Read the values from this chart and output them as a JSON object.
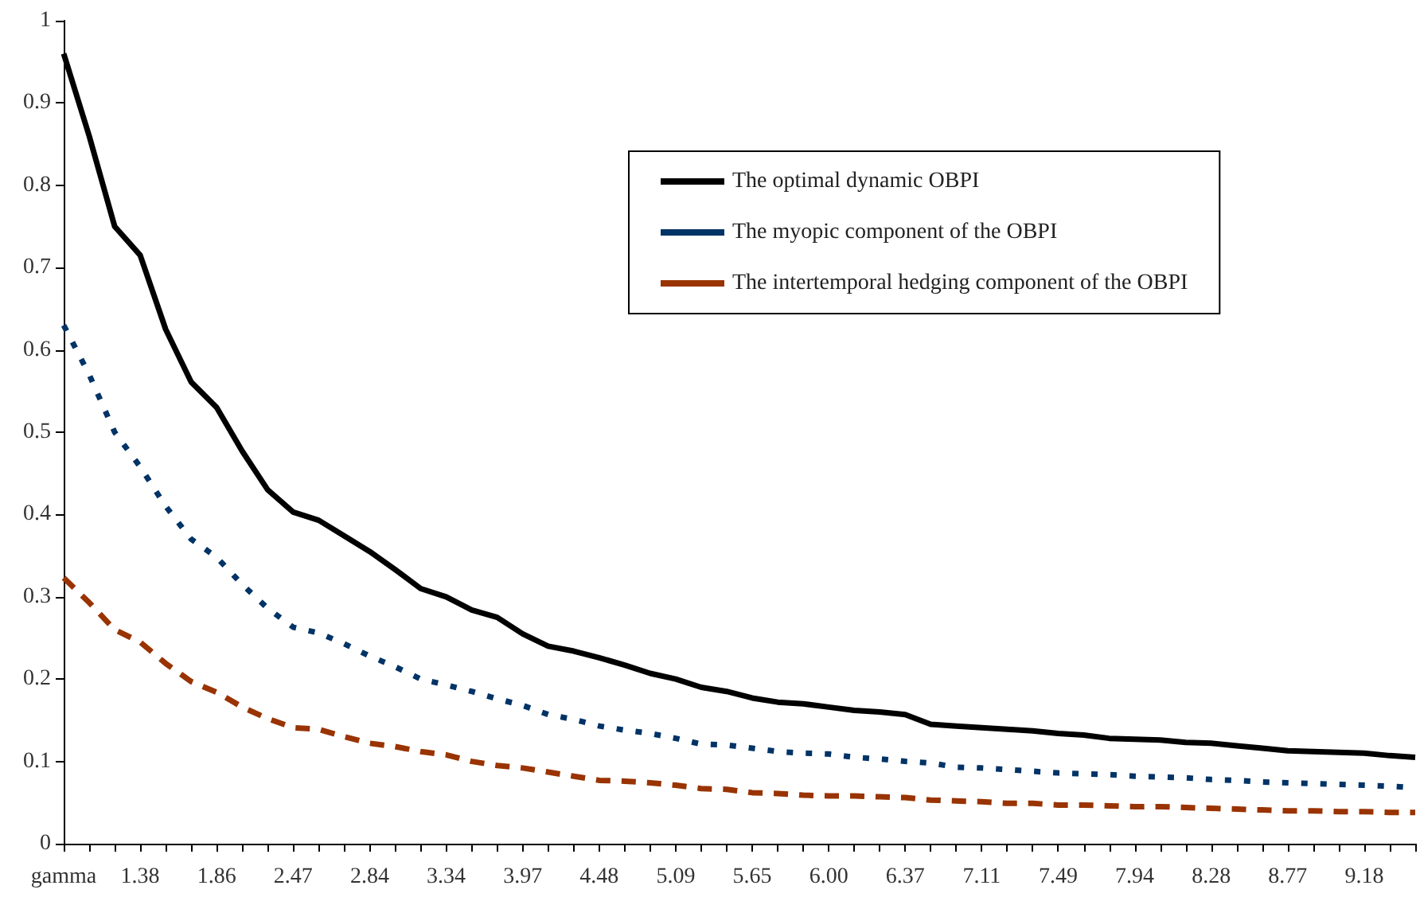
{
  "chart_data": {
    "type": "line",
    "categories": [
      "gamma",
      null,
      null,
      "1.38",
      null,
      null,
      "1.86",
      null,
      null,
      "2.47",
      null,
      null,
      "2.84",
      null,
      null,
      "3.34",
      null,
      null,
      "3.97",
      null,
      null,
      "4.48",
      null,
      null,
      "5.09",
      null,
      null,
      "5.65",
      null,
      null,
      "6.00",
      null,
      null,
      "6.37",
      null,
      null,
      "7.11",
      null,
      null,
      "7.49",
      null,
      null,
      "7.94",
      null,
      null,
      "8.28",
      null,
      null,
      "8.77",
      null,
      null,
      "9.18",
      null,
      null
    ],
    "series": [
      {
        "name": "The optimal dynamic OBPI",
        "color": "#000000",
        "line_style": "solid",
        "values": [
          0.96,
          0.86,
          0.75,
          0.715,
          0.625,
          0.561,
          0.53,
          0.477,
          0.43,
          0.403,
          0.393,
          0.374,
          0.355,
          0.333,
          0.31,
          0.3,
          0.284,
          0.275,
          0.255,
          0.24,
          0.234,
          0.226,
          0.217,
          0.207,
          0.2,
          0.19,
          0.185,
          0.177,
          0.172,
          0.17,
          0.166,
          0.162,
          0.16,
          0.157,
          0.145,
          0.143,
          0.141,
          0.139,
          0.137,
          0.134,
          0.132,
          0.128,
          0.127,
          0.126,
          0.123,
          0.122,
          0.119,
          0.116,
          0.113,
          0.112,
          0.111,
          0.11,
          0.107,
          0.105
        ]
      },
      {
        "name": "The myopic component of the OBPI",
        "color": "#003366",
        "line_style": "dotted",
        "values": [
          0.63,
          0.57,
          0.5,
          0.458,
          0.41,
          0.37,
          0.348,
          0.315,
          0.286,
          0.263,
          0.256,
          0.243,
          0.228,
          0.215,
          0.2,
          0.193,
          0.185,
          0.176,
          0.168,
          0.157,
          0.151,
          0.143,
          0.138,
          0.134,
          0.128,
          0.121,
          0.12,
          0.116,
          0.112,
          0.11,
          0.109,
          0.105,
          0.103,
          0.1,
          0.098,
          0.093,
          0.092,
          0.09,
          0.088,
          0.086,
          0.085,
          0.084,
          0.082,
          0.081,
          0.08,
          0.078,
          0.077,
          0.075,
          0.074,
          0.073,
          0.072,
          0.071,
          0.07,
          0.068
        ]
      },
      {
        "name": "The intertemporal hedging component of the OBPI",
        "color": "#993300",
        "line_style": "dashed",
        "values": [
          0.323,
          0.293,
          0.26,
          0.245,
          0.219,
          0.197,
          0.184,
          0.166,
          0.152,
          0.141,
          0.139,
          0.13,
          0.122,
          0.118,
          0.112,
          0.108,
          0.1,
          0.095,
          0.092,
          0.087,
          0.082,
          0.077,
          0.076,
          0.074,
          0.071,
          0.067,
          0.066,
          0.062,
          0.061,
          0.059,
          0.058,
          0.058,
          0.057,
          0.056,
          0.053,
          0.052,
          0.051,
          0.049,
          0.049,
          0.047,
          0.047,
          0.046,
          0.045,
          0.045,
          0.044,
          0.043,
          0.042,
          0.041,
          0.04,
          0.04,
          0.039,
          0.039,
          0.038,
          0.038
        ]
      }
    ],
    "ylim": [
      0,
      1
    ],
    "yticks": [
      0,
      0.1,
      0.2,
      0.3,
      0.4,
      0.5,
      0.6,
      0.7,
      0.8,
      0.9,
      1
    ],
    "grid": false,
    "legend": "top right",
    "marker": "none"
  }
}
